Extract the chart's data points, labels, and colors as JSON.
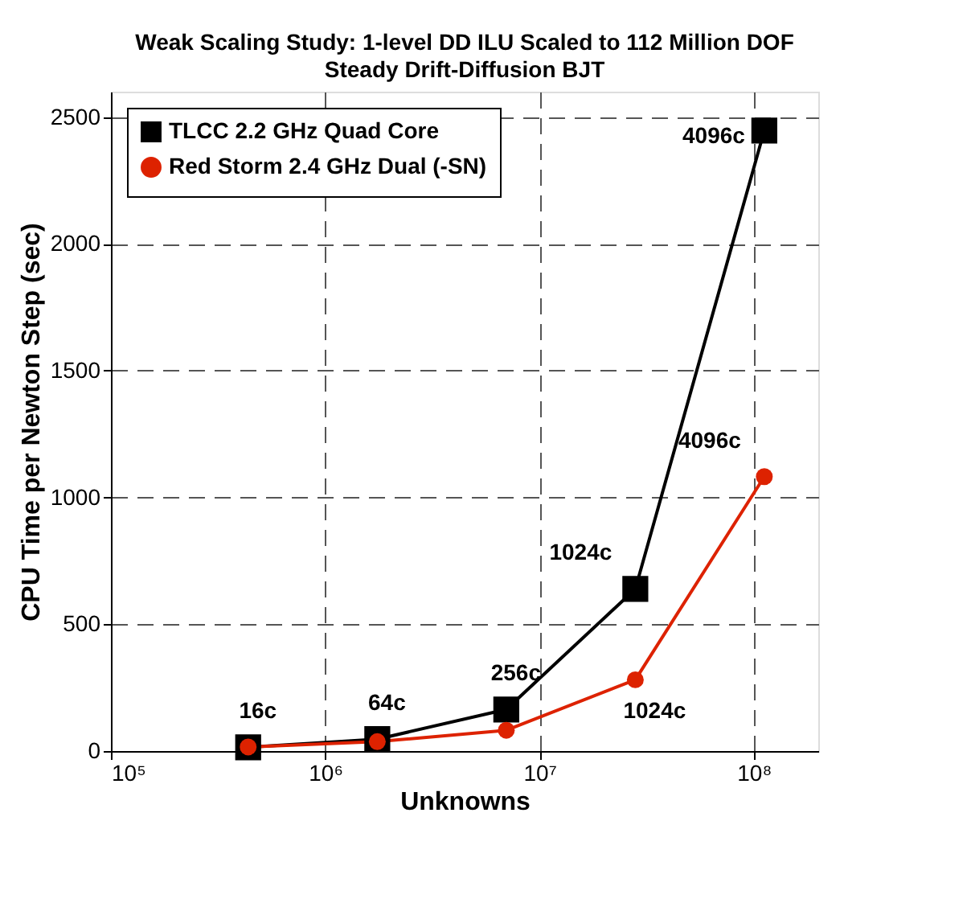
{
  "chart_data": {
    "type": "line",
    "title": "Weak Scaling Study: 1-level DD ILU Scaled to 112 Million DOF",
    "subtitle": "Steady Drift-Diffusion BJT",
    "xlabel": "Unknowns",
    "ylabel": "CPU Time per Newton Step (sec)",
    "x": [
      437000,
      1750000,
      7000000,
      28000000,
      112000000
    ],
    "series": [
      {
        "name": "TLCC 2.2 GHz Quad Core",
        "color": "#000000",
        "marker": "square",
        "values": [
          15,
          47,
          164,
          639,
          2447
        ]
      },
      {
        "name": "Red Storm 2.4 GHz Dual (-SN)",
        "color": "#dd2200",
        "marker": "circle",
        "values": [
          16,
          37,
          82,
          281,
          1082
        ]
      }
    ],
    "log": "x",
    "xlim": [
      100000,
      200000000
    ],
    "xticks": [
      {
        "value": 100000,
        "label": "10⁵"
      },
      {
        "value": 1000000,
        "label": "10⁶"
      },
      {
        "value": 10000000,
        "label": "10⁷"
      },
      {
        "value": 100000000,
        "label": "10⁸"
      }
    ],
    "ylim": [
      0,
      2600
    ],
    "yticks": [
      0,
      500,
      1000,
      1500,
      2000,
      2500
    ],
    "grid": true,
    "line_style": "solid",
    "legend": "top left",
    "annotations": [
      {
        "text": "16c",
        "x": 437000,
        "y": 15
      },
      {
        "text": "64c",
        "x": 1750000,
        "y": 47
      },
      {
        "text": "256c",
        "x": 7000000,
        "y": 164
      },
      {
        "text": "1024c",
        "x": 28000000,
        "y": 639
      },
      {
        "text": "4096c",
        "x": 112000000,
        "y": 2447
      },
      {
        "text": "1024c",
        "x": 28000000,
        "y": 281
      },
      {
        "text": "4096c",
        "x": 112000000,
        "y": 1082
      }
    ]
  }
}
